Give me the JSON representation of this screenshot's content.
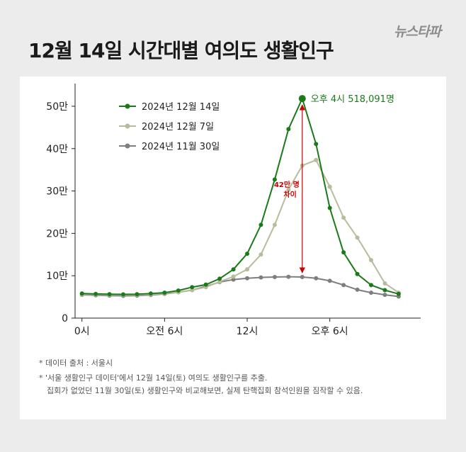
{
  "logo": "뉴스타파",
  "title": "12월 14일 시간대별 여의도 생활인구",
  "chart_data": {
    "type": "line",
    "title": "12월 14일 시간대별 여의도 생활인구",
    "xlabel": "",
    "ylabel": "",
    "x": [
      0,
      1,
      2,
      3,
      4,
      5,
      6,
      7,
      8,
      9,
      10,
      11,
      12,
      13,
      14,
      15,
      16,
      17,
      18,
      19,
      20,
      21,
      22,
      23
    ],
    "xlim": [
      -0.5,
      24.6
    ],
    "ylim": [
      0,
      520000
    ],
    "xticks": [
      {
        "value": 0,
        "label": "0시"
      },
      {
        "value": 6,
        "label": "오전 6시"
      },
      {
        "value": 12,
        "label": "12시"
      },
      {
        "value": 18,
        "label": "오후 6시"
      }
    ],
    "yticks": [
      {
        "value": 0,
        "label": "0"
      },
      {
        "value": 100000,
        "label": "10만"
      },
      {
        "value": 200000,
        "label": "20만"
      },
      {
        "value": 300000,
        "label": "30만"
      },
      {
        "value": 400000,
        "label": "40만"
      },
      {
        "value": 500000,
        "label": "50만"
      }
    ],
    "grid": false,
    "legend_position": "top-left",
    "series": [
      {
        "name": "2024년 12월 14일",
        "color": "#1a7a1a",
        "values": [
          58000,
          57000,
          56500,
          56000,
          56500,
          58000,
          60000,
          65000,
          73000,
          79000,
          93000,
          115000,
          152000,
          220000,
          327000,
          446000,
          518091,
          411000,
          260000,
          155000,
          104000,
          78000,
          66000,
          57000
        ]
      },
      {
        "name": "2024년 12월 7일",
        "color": "#b9bb9c",
        "values": [
          56000,
          55500,
          55000,
          54500,
          55000,
          56000,
          58000,
          61000,
          66000,
          73000,
          86000,
          98000,
          115000,
          150000,
          220000,
          303000,
          360000,
          373000,
          310000,
          237000,
          190000,
          137000,
          82000,
          60000
        ]
      },
      {
        "name": "2024년 11월 30일",
        "color": "#7e7e7e",
        "values": [
          55000,
          54000,
          53000,
          52500,
          53000,
          54500,
          57000,
          61000,
          66000,
          75000,
          85000,
          91000,
          94000,
          96000,
          97000,
          97500,
          97000,
          94000,
          88000,
          78000,
          67000,
          60000,
          55000,
          51000
        ]
      }
    ],
    "annotations": {
      "peak": {
        "x": 16,
        "value": 518091,
        "label": "오후 4시  518,091명"
      },
      "difference": {
        "x": 16,
        "from": 97000,
        "to": 518091,
        "line1": "42만 명",
        "line2": "차이",
        "color": "#cc0000"
      }
    }
  },
  "notes": [
    "* 데이터 출처 : 서울시",
    "* '서울 생활인구 데이터'에서 12월 14일(토) 여의도 생활인구를 추출.",
    "집회가 없었던 11월 30일(토) 생활인구와 비교해보면, 실제 탄핵집회 참석인원을 짐작할 수 있음."
  ]
}
